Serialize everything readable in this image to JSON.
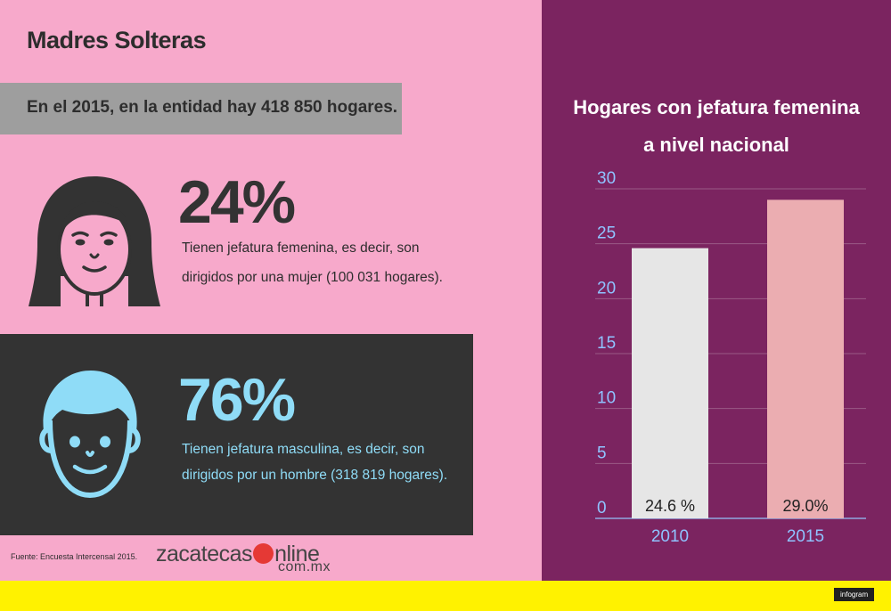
{
  "title": "Madres Solteras",
  "banner": "En el 2015, en la entidad hay 418 850 hogares.",
  "female": {
    "percent": "24%",
    "line1": "Tienen jefatura femenina, es decir, son",
    "line2": "dirigidos por una mujer (100 031 hogares)."
  },
  "male": {
    "percent": "76%",
    "line1": "Tienen jefatura masculina, es decir, son",
    "line2": "dirigidos por un hombre (318 819 hogares)."
  },
  "source": "Fuente: Encuesta Intercensal 2015.",
  "brand": {
    "pre": "zacatecas",
    "post": "nline",
    "sub": "com.mx"
  },
  "infogram": "infogram",
  "colors": {
    "left_bg": "#f7a9cb",
    "right_bg": "#7b2460",
    "dark": "#333333",
    "male_accent": "#8fdcf7",
    "footer": "#fff200"
  },
  "chart_data": {
    "type": "bar",
    "title_line1": "Hogares con jefatura femenina",
    "title_line2": "a nivel nacional",
    "categories": [
      "2010",
      "2015"
    ],
    "values": [
      24.6,
      29.0
    ],
    "value_labels": [
      "24.6 %",
      "29.0%"
    ],
    "bar_colors": [
      "#e6e6e6",
      "#ebadb1"
    ],
    "ylim": [
      0,
      30
    ],
    "yticks": [
      0,
      5,
      10,
      15,
      20,
      25,
      30
    ],
    "grid": true,
    "legend": "none"
  }
}
